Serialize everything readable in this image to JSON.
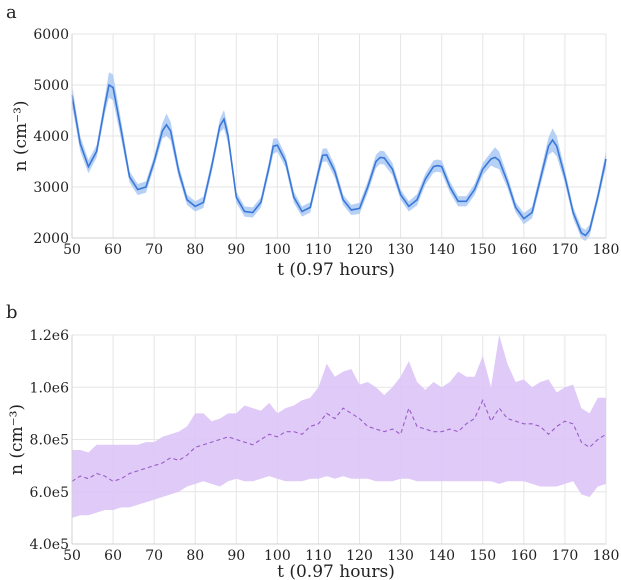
{
  "colors": {
    "a_line": "#3a78d8",
    "a_band": "#a9c8f5",
    "b_line": "#9a5cc8",
    "b_band": "#dcc4f7"
  },
  "chart_data": [
    {
      "panel_label": "a",
      "type": "area",
      "xlabel": "t (0.97 hours)",
      "ylabel": "n (cm⁻³)",
      "xlim": [
        50,
        180
      ],
      "ylim": [
        2000,
        6000
      ],
      "xticks": [
        "50",
        "60",
        "70",
        "80",
        "90",
        "100",
        "110",
        "120",
        "130",
        "140",
        "150",
        "160",
        "170",
        "180"
      ],
      "yticks": [
        "2000",
        "3000",
        "4000",
        "5000",
        "6000"
      ],
      "grid": true,
      "series": [
        {
          "style": "solid",
          "x": [
            50,
            52,
            54,
            56,
            58,
            59,
            60,
            62,
            64,
            66,
            68,
            70,
            72,
            73,
            74,
            76,
            78,
            80,
            82,
            84,
            86,
            87,
            88,
            90,
            92,
            94,
            96,
            98,
            99,
            100,
            102,
            104,
            106,
            108,
            110,
            111,
            112,
            114,
            116,
            118,
            120,
            122,
            124,
            125,
            126,
            128,
            130,
            132,
            134,
            136,
            138,
            139,
            140,
            142,
            144,
            146,
            148,
            150,
            152,
            153,
            154,
            156,
            158,
            160,
            162,
            164,
            166,
            167,
            168,
            170,
            172,
            174,
            175,
            176,
            178,
            180
          ],
          "y": [
            4800,
            3850,
            3400,
            3700,
            4600,
            5000,
            4950,
            4100,
            3200,
            2950,
            3000,
            3500,
            4100,
            4220,
            4100,
            3300,
            2750,
            2620,
            2700,
            3400,
            4200,
            4330,
            4000,
            2800,
            2520,
            2500,
            2700,
            3400,
            3800,
            3820,
            3500,
            2800,
            2520,
            2600,
            3300,
            3620,
            3630,
            3300,
            2750,
            2550,
            2580,
            3000,
            3500,
            3580,
            3570,
            3350,
            2850,
            2620,
            2750,
            3150,
            3400,
            3420,
            3400,
            3000,
            2720,
            2720,
            2950,
            3350,
            3550,
            3580,
            3520,
            3100,
            2600,
            2380,
            2500,
            3150,
            3800,
            3920,
            3800,
            3200,
            2500,
            2100,
            2050,
            2150,
            2800,
            3550
          ],
          "band": [
            200,
            150,
            130,
            120,
            160,
            250,
            250,
            180,
            110,
            110,
            110,
            110,
            150,
            220,
            180,
            120,
            100,
            100,
            110,
            120,
            130,
            180,
            150,
            110,
            100,
            100,
            100,
            120,
            150,
            130,
            120,
            110,
            100,
            100,
            120,
            130,
            130,
            120,
            100,
            100,
            110,
            110,
            130,
            130,
            130,
            120,
            100,
            100,
            110,
            110,
            120,
            120,
            120,
            110,
            100,
            100,
            110,
            120,
            130,
            200,
            170,
            120,
            100,
            110,
            110,
            130,
            170,
            230,
            200,
            130,
            110,
            110,
            110,
            110,
            110,
            150
          ]
        }
      ]
    },
    {
      "panel_label": "b",
      "type": "area",
      "xlabel": "t (0.97 hours)",
      "ylabel": "n (cm⁻³)",
      "xlim": [
        50,
        180
      ],
      "ylim": [
        400000,
        1200000
      ],
      "xticks": [
        "50",
        "60",
        "70",
        "80",
        "90",
        "100",
        "110",
        "120",
        "130",
        "140",
        "150",
        "160",
        "170",
        "180"
      ],
      "yticks": [
        "4.0e5",
        "6.0e5",
        "8.0e5",
        "1.0e6",
        "1.2e6"
      ],
      "grid": true,
      "series": [
        {
          "style": "dashed",
          "x": [
            50,
            52,
            54,
            56,
            58,
            60,
            62,
            64,
            66,
            68,
            70,
            72,
            74,
            76,
            78,
            80,
            82,
            84,
            86,
            88,
            90,
            92,
            94,
            96,
            98,
            100,
            102,
            104,
            106,
            108,
            110,
            112,
            114,
            116,
            118,
            120,
            122,
            124,
            126,
            128,
            130,
            132,
            134,
            136,
            138,
            140,
            142,
            144,
            146,
            148,
            150,
            152,
            154,
            156,
            158,
            160,
            162,
            164,
            166,
            168,
            170,
            172,
            174,
            176,
            178,
            180
          ],
          "y": [
            640000,
            660000,
            650000,
            670000,
            660000,
            640000,
            650000,
            670000,
            680000,
            690000,
            700000,
            710000,
            730000,
            720000,
            740000,
            770000,
            780000,
            790000,
            800000,
            810000,
            800000,
            790000,
            780000,
            800000,
            820000,
            810000,
            830000,
            830000,
            820000,
            850000,
            860000,
            900000,
            880000,
            920000,
            900000,
            880000,
            850000,
            840000,
            830000,
            840000,
            820000,
            920000,
            850000,
            840000,
            830000,
            830000,
            840000,
            830000,
            860000,
            880000,
            950000,
            870000,
            920000,
            880000,
            870000,
            860000,
            860000,
            850000,
            820000,
            850000,
            870000,
            860000,
            790000,
            770000,
            800000,
            820000
          ],
          "lower": [
            500000,
            510000,
            510000,
            520000,
            530000,
            530000,
            540000,
            540000,
            550000,
            560000,
            570000,
            580000,
            590000,
            600000,
            620000,
            630000,
            640000,
            630000,
            620000,
            640000,
            650000,
            640000,
            640000,
            650000,
            660000,
            650000,
            640000,
            640000,
            640000,
            650000,
            650000,
            660000,
            650000,
            660000,
            650000,
            650000,
            650000,
            640000,
            640000,
            640000,
            650000,
            650000,
            640000,
            640000,
            640000,
            640000,
            640000,
            640000,
            640000,
            640000,
            640000,
            640000,
            630000,
            640000,
            640000,
            640000,
            630000,
            620000,
            620000,
            620000,
            630000,
            640000,
            590000,
            580000,
            620000,
            630000
          ],
          "upper": [
            760000,
            760000,
            750000,
            780000,
            780000,
            780000,
            780000,
            780000,
            780000,
            790000,
            790000,
            810000,
            820000,
            830000,
            850000,
            900000,
            900000,
            870000,
            880000,
            900000,
            900000,
            930000,
            920000,
            910000,
            940000,
            900000,
            920000,
            930000,
            950000,
            960000,
            1000000,
            1090000,
            1040000,
            1060000,
            1070000,
            1010000,
            1020000,
            1000000,
            970000,
            1000000,
            1040000,
            1100000,
            1020000,
            990000,
            1020000,
            1000000,
            1020000,
            1060000,
            1040000,
            1040000,
            1120000,
            1000000,
            1200000,
            1090000,
            1020000,
            1030000,
            1000000,
            1020000,
            1030000,
            980000,
            1000000,
            1010000,
            920000,
            900000,
            960000,
            960000
          ]
        }
      ]
    }
  ]
}
